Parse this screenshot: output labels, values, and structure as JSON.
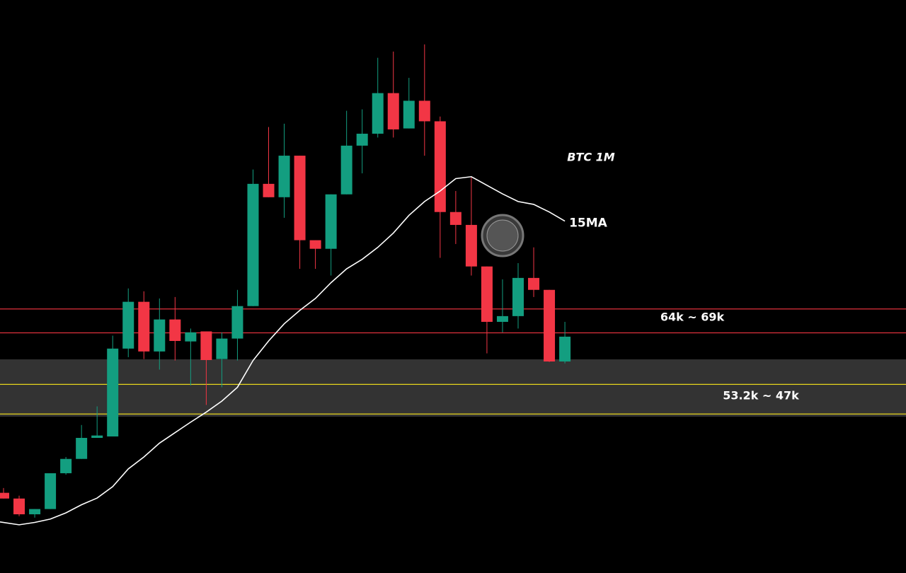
{
  "chart_data": {
    "type": "candlestick",
    "title": "BTC 1M",
    "ylim": [
      14.3,
      133.7
    ],
    "up_color": "#139e80",
    "down_color": "#f23645",
    "open": [
      30.5,
      29.3,
      26.0,
      27.1,
      34.6,
      37.6,
      42.0,
      42.3,
      60.7,
      70.5,
      60.1,
      66.8,
      62.2,
      64.3,
      58.5,
      62.8,
      69.6,
      95.2,
      92.4,
      101.1,
      83.4,
      81.6,
      93.0,
      103.2,
      105.7,
      114.2,
      106.8,
      112.6,
      108.3,
      89.3,
      86.6,
      77.9,
      66.3,
      67.5,
      75.5,
      73.0,
      58.0
    ],
    "high": [
      31.5,
      29.9,
      27.1,
      34.6,
      38.0,
      44.7,
      48.6,
      63.4,
      73.3,
      72.7,
      71.2,
      71.5,
      64.9,
      64.3,
      64.1,
      73.0,
      98.2,
      107.1,
      107.8,
      101.1,
      83.4,
      93.0,
      110.5,
      110.8,
      121.6,
      122.9,
      117.4,
      124.4,
      109.3,
      93.7,
      96.7,
      77.9,
      75.2,
      78.6,
      81.9,
      73.0,
      66.3
    ],
    "low": [
      29.3,
      25.6,
      25.3,
      27.1,
      34.3,
      37.6,
      42.0,
      42.3,
      58.9,
      58.5,
      56.3,
      58.2,
      53.0,
      48.9,
      52.6,
      58.2,
      69.6,
      92.4,
      88.1,
      77.4,
      77.4,
      76.0,
      93.0,
      97.4,
      104.9,
      104.9,
      106.8,
      101.1,
      79.7,
      82.6,
      76.0,
      59.7,
      64.1,
      64.9,
      71.5,
      57.9,
      57.6
    ],
    "close": [
      29.3,
      26.0,
      27.1,
      34.6,
      37.6,
      42.0,
      42.5,
      60.7,
      70.5,
      60.1,
      66.8,
      62.3,
      64.1,
      58.3,
      62.8,
      69.6,
      95.2,
      92.4,
      101.1,
      83.4,
      81.6,
      93.0,
      103.2,
      105.7,
      114.2,
      106.6,
      112.6,
      108.3,
      89.3,
      86.6,
      77.9,
      66.3,
      67.5,
      75.5,
      73.0,
      58.0,
      63.2
    ],
    "series": [
      {
        "name": "15MA",
        "color": "#ffffff",
        "values": [
          24.4,
          23.8,
          24.3,
          25.0,
          26.3,
          28.0,
          29.4,
          31.8,
          35.5,
          38.0,
          40.9,
          43.1,
          45.3,
          47.4,
          49.7,
          52.6,
          58.2,
          62.3,
          65.9,
          68.7,
          71.2,
          74.5,
          77.4,
          79.4,
          81.9,
          84.9,
          88.6,
          91.5,
          93.7,
          96.3,
          96.7,
          94.9,
          93.1,
          91.5,
          90.9,
          89.3,
          87.4
        ]
      }
    ],
    "zones": [
      {
        "label": "64k ~ 69k",
        "from": 64,
        "to": 69,
        "color": "#e0313c"
      },
      {
        "label": "53.2k ~ 47k",
        "from": 53.2,
        "to": 47,
        "color": "#e6d51d"
      }
    ]
  }
}
